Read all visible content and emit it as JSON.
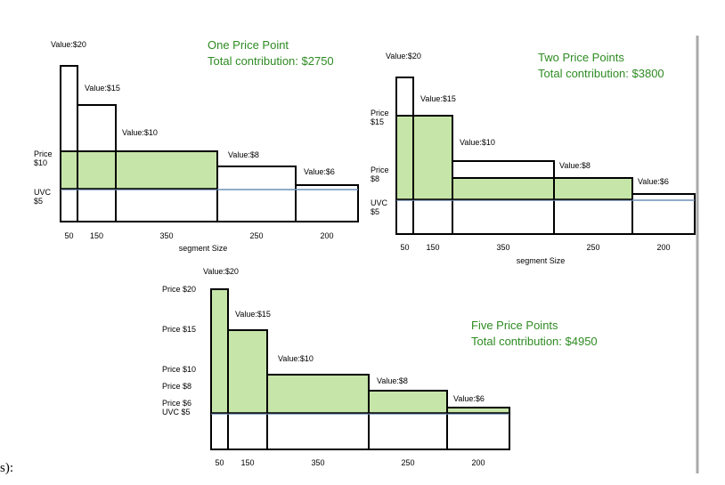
{
  "panels": [
    {
      "title": "One Price Point",
      "subtitle": "Total contribution: $2750",
      "axis_label": "segment Size",
      "segments": [
        {
          "value": "Value:$20",
          "size": "50"
        },
        {
          "value": "Value:$15",
          "size": "150"
        },
        {
          "value": "Value:$10",
          "size": "350"
        },
        {
          "value": "Value:$8",
          "size": "250"
        },
        {
          "value": "Value:$6",
          "size": "200"
        }
      ],
      "price_labels": [
        [
          "Price",
          "$10"
        ],
        [
          "UVC",
          "$5"
        ]
      ]
    },
    {
      "title": "Two Price Points",
      "subtitle": "Total contribution: $3800",
      "axis_label": "segment Size",
      "segments": [
        {
          "value": "Value:$20",
          "size": "50"
        },
        {
          "value": "Value:$15",
          "size": "150"
        },
        {
          "value": "Value:$10",
          "size": "350"
        },
        {
          "value": "Value:$8",
          "size": "250"
        },
        {
          "value": "Value:$6",
          "size": "200"
        }
      ],
      "price_labels": [
        [
          "Price",
          "$15"
        ],
        [
          "Price",
          "$8"
        ],
        [
          "UVC",
          "$5"
        ]
      ]
    },
    {
      "title": "Five Price Points",
      "subtitle": "Total contribution: $4950",
      "segments": [
        {
          "value": "Value:$20",
          "size": "50"
        },
        {
          "value": "Value:$15",
          "size": "150"
        },
        {
          "value": "Value:$10",
          "size": "350"
        },
        {
          "value": "Value:$8",
          "size": "250"
        },
        {
          "value": "Value:$6",
          "size": "200"
        }
      ],
      "price_labels": [
        [
          "Price $20"
        ],
        [
          "Price $15"
        ],
        [
          "Price $10"
        ],
        [
          "Price $8"
        ],
        [
          "Price $6"
        ],
        [
          "UVC $5"
        ]
      ]
    }
  ],
  "fragment": "s):"
}
